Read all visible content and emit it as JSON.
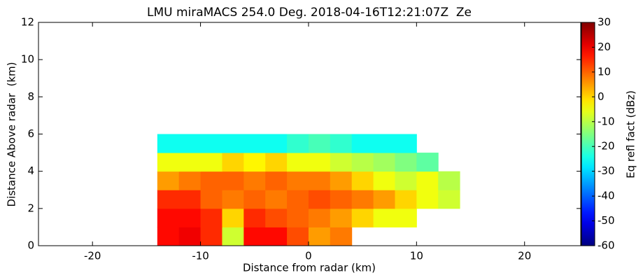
{
  "chart_data": {
    "type": "heatmap",
    "title": "LMU miraMACS 254.0 Deg. 2018-04-16T12:21:07Z  Ze",
    "xlabel": "Distance from radar (km)",
    "ylabel": "Distance Above radar  (km)",
    "x": [
      -13,
      -11,
      -9,
      -7,
      -5,
      -3,
      -1,
      1,
      3,
      5,
      7,
      9,
      11,
      13
    ],
    "y": [
      0.5,
      1.5,
      2.5,
      3.5,
      4.5,
      5.5
    ],
    "z": [
      [
        18,
        20,
        15,
        -8,
        18,
        18,
        12,
        5,
        8,
        null,
        null,
        null,
        null,
        null
      ],
      [
        18,
        18,
        15,
        0,
        15,
        12,
        10,
        8,
        5,
        0,
        -5,
        -5,
        null,
        null
      ],
      [
        15,
        15,
        10,
        8,
        10,
        8,
        10,
        12,
        10,
        8,
        5,
        0,
        -5,
        -8
      ],
      [
        5,
        8,
        10,
        10,
        8,
        10,
        8,
        8,
        5,
        0,
        -5,
        -8,
        -5,
        -10
      ],
      [
        -5,
        -5,
        -5,
        0,
        -3,
        0,
        -5,
        -5,
        -8,
        -10,
        -12,
        -15,
        -18,
        null
      ],
      [
        -25,
        -25,
        -25,
        -25,
        -25,
        -25,
        -22,
        -20,
        -22,
        -25,
        -25,
        -25,
        null,
        null
      ]
    ],
    "xlim": [
      -25,
      25.2
    ],
    "ylim": [
      0,
      12
    ],
    "xticks": [
      -20,
      -10,
      0,
      10,
      20
    ],
    "yticks": [
      0,
      2,
      4,
      6,
      8,
      10,
      12
    ],
    "colormap": "jet",
    "colorbar": {
      "label": "Eq refl fact (dBz)",
      "lim": [
        -60,
        30
      ],
      "ticks": [
        -60,
        -50,
        -40,
        -30,
        -20,
        -10,
        0,
        10,
        20,
        30
      ]
    }
  }
}
